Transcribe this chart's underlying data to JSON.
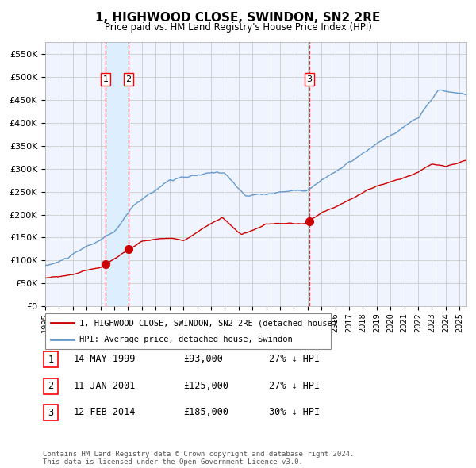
{
  "title": "1, HIGHWOOD CLOSE, SWINDON, SN2 2RE",
  "subtitle": "Price paid vs. HM Land Registry's House Price Index (HPI)",
  "footer": "Contains HM Land Registry data © Crown copyright and database right 2024.\nThis data is licensed under the Open Government Licence v3.0.",
  "legend_line1": "1, HIGHWOOD CLOSE, SWINDON, SN2 2RE (detached house)",
  "legend_line2": "HPI: Average price, detached house, Swindon",
  "transactions": [
    {
      "num": 1,
      "date": "14-MAY-1999",
      "price": 93000,
      "price_str": "£93,000",
      "note": "27% ↓ HPI",
      "x_year": 1999.37
    },
    {
      "num": 2,
      "date": "11-JAN-2001",
      "price": 125000,
      "price_str": "£125,000",
      "note": "27% ↓ HPI",
      "x_year": 2001.03
    },
    {
      "num": 3,
      "date": "12-FEB-2014",
      "price": 185000,
      "price_str": "£185,000",
      "note": "30% ↓ HPI",
      "x_year": 2014.12
    }
  ],
  "hpi_color": "#6699cc",
  "price_color": "#cc0000",
  "vline_color": "#cc0000",
  "shade_color": "#ddeeff",
  "grid_color": "#cccccc",
  "plot_bg_color": "#f0f4ff",
  "ylim": [
    0,
    575000
  ],
  "yticks": [
    0,
    50000,
    100000,
    150000,
    200000,
    250000,
    300000,
    350000,
    400000,
    450000,
    500000,
    550000
  ],
  "xlim_start": 1995.0,
  "xlim_end": 2025.5
}
